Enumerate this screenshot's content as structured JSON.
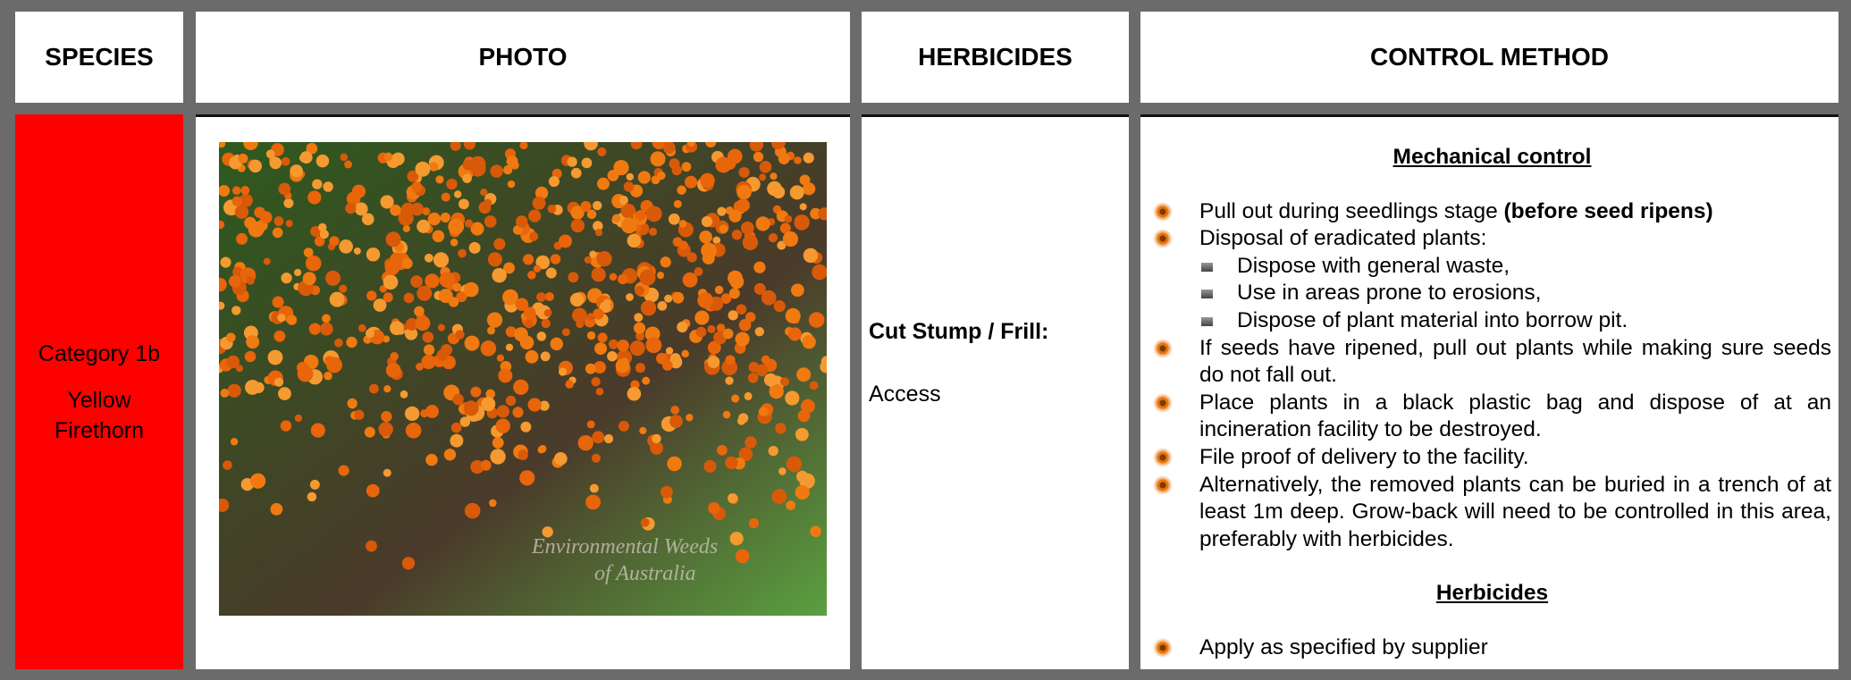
{
  "header": {
    "columns": [
      "SPECIES",
      "PHOTO",
      "HERBICIDES",
      "CONTROL METHOD"
    ]
  },
  "row": {
    "species": {
      "category": "Category 1b",
      "name": "Yellow Firethorn"
    },
    "photo": {
      "watermark": [
        "Environmental Weeds",
        "of Australia"
      ]
    },
    "herbicides": {
      "method": "Cut Stump / Frill:",
      "product": "Access"
    },
    "control": {
      "sections": [
        {
          "heading": "Mechanical control",
          "items": [
            {
              "parts": [
                {
                  "text": "Pull out during seedlings stage "
                },
                {
                  "text": "(before seed ripens)",
                  "bold": true
                }
              ]
            },
            {
              "parts": [
                {
                  "text": "Disposal of eradicated plants:"
                }
              ],
              "subitems": [
                "Dispose with general waste,",
                "Use in areas prone to erosions,",
                "Dispose of plant material into borrow pit."
              ]
            },
            {
              "parts": [
                {
                  "text": "If seeds have ripened, pull out plants while making sure seeds do not fall out."
                }
              ]
            },
            {
              "parts": [
                {
                  "text": "Place plants in a black plastic bag and dispose of at an incineration facility to be destroyed."
                }
              ]
            },
            {
              "parts": [
                {
                  "text": "File proof of delivery to the facility."
                }
              ]
            },
            {
              "parts": [
                {
                  "text": "Alternatively, the removed plants can be buried in a trench of at least 1m deep. Grow-back will need to be controlled in this area, preferably with herbicides."
                }
              ]
            }
          ]
        },
        {
          "heading": "Herbicides",
          "items": [
            {
              "parts": [
                {
                  "text": "Apply as specified by supplier"
                }
              ]
            }
          ]
        }
      ]
    }
  }
}
